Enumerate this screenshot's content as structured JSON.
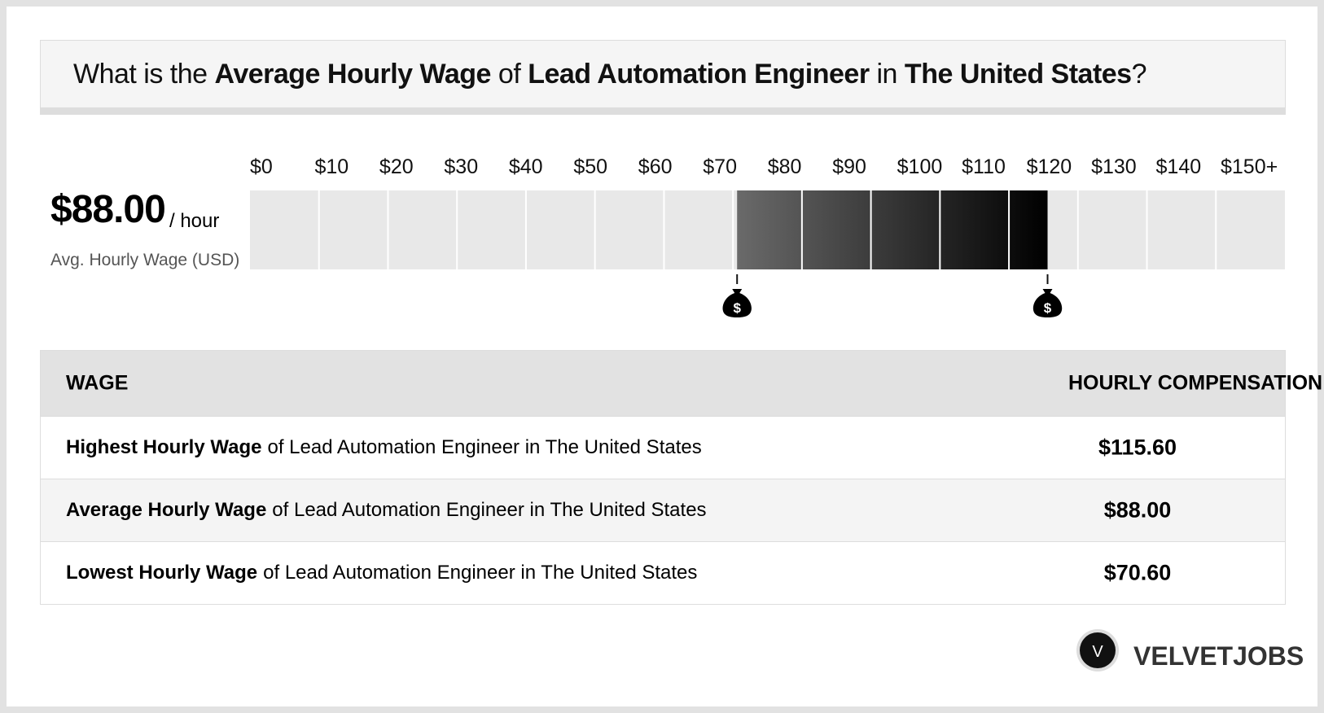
{
  "header": {
    "title": {
      "pre": "What is the",
      "metric": "Average Hourly Wage",
      "of": "of",
      "job": "Lead Automation Engineer",
      "in": "in",
      "location": "The United States",
      "end": "?"
    }
  },
  "summary": {
    "value": "$88.00",
    "unit": "/ hour",
    "caption": "Avg. Hourly Wage (USD)"
  },
  "chart_data": {
    "type": "range",
    "xlim": [
      0,
      150
    ],
    "xticks": [
      {
        "value": 0,
        "label": "$0"
      },
      {
        "value": 10,
        "label": "$10"
      },
      {
        "value": 20,
        "label": "$20"
      },
      {
        "value": 30,
        "label": "$30"
      },
      {
        "value": 40,
        "label": "$40"
      },
      {
        "value": 50,
        "label": "$50"
      },
      {
        "value": 60,
        "label": "$60"
      },
      {
        "value": 70,
        "label": "$70"
      },
      {
        "value": 80,
        "label": "$80"
      },
      {
        "value": 90,
        "label": "$90"
      },
      {
        "value": 100,
        "label": "$100"
      },
      {
        "value": 110,
        "label": "$110"
      },
      {
        "value": 120,
        "label": "$120"
      },
      {
        "value": 130,
        "label": "$130"
      },
      {
        "value": 140,
        "label": "$140"
      },
      {
        "value": 150,
        "label": "$150+"
      }
    ],
    "low": 70.6,
    "high": 115.6
  },
  "table": {
    "header": [
      "WAGE",
      "HOURLY COMPENSATION"
    ],
    "rows": [
      [
        "Highest Hourly Wage",
        "of Lead Automation Engineer in The United States",
        "$115.60"
      ],
      [
        "Average Hourly Wage",
        "of Lead Automation Engineer in The United States",
        "$88.00"
      ],
      [
        "Lowest Hourly Wage",
        "of Lead Automation Engineer in The United States",
        "$70.60"
      ]
    ]
  },
  "logo": {
    "mark": "V",
    "name": "VELVETJOBS"
  }
}
